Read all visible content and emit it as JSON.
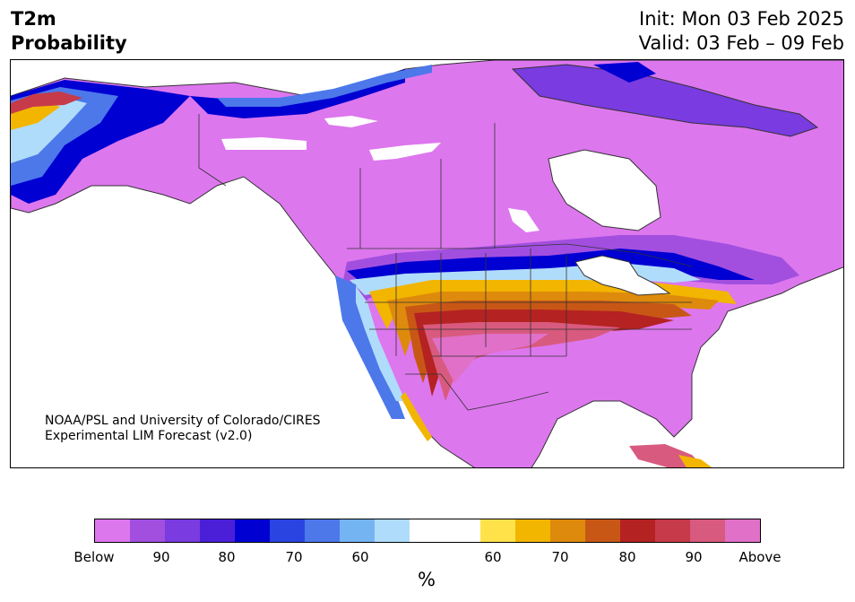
{
  "header": {
    "variable": "T2m",
    "product": "Probability",
    "init": "Init: Mon 03 Feb 2025",
    "valid": "Valid: 03 Feb – 09 Feb"
  },
  "map": {
    "credit_line1": "NOAA/PSL and University of Colorado/CIRES",
    "credit_line2": "Experimental LIM Forecast (v2.0)",
    "summary": {
      "below_normal_region": "Canada, Alaska interior, northern US tier",
      "above_normal_region": "Southern and eastern US, Mexico",
      "land_color": "#ffffff",
      "border_color": "#333333"
    }
  },
  "colorbar": {
    "unit": "%",
    "colors": [
      "#dd77ee",
      "#a24fe0",
      "#7a3be0",
      "#4b1fd8",
      "#0000d2",
      "#2a44e2",
      "#4c78ea",
      "#74b4f2",
      "#b0dcfb",
      "#ffffff",
      "#ffffff",
      "#ffe24a",
      "#f2b500",
      "#de8a0c",
      "#c85716",
      "#b52222",
      "#c73a4a",
      "#d85a7e",
      "#e070c8"
    ],
    "ticks": [
      "Below",
      "90",
      "80",
      "70",
      "60",
      "60",
      "70",
      "80",
      "90",
      "Above"
    ]
  }
}
